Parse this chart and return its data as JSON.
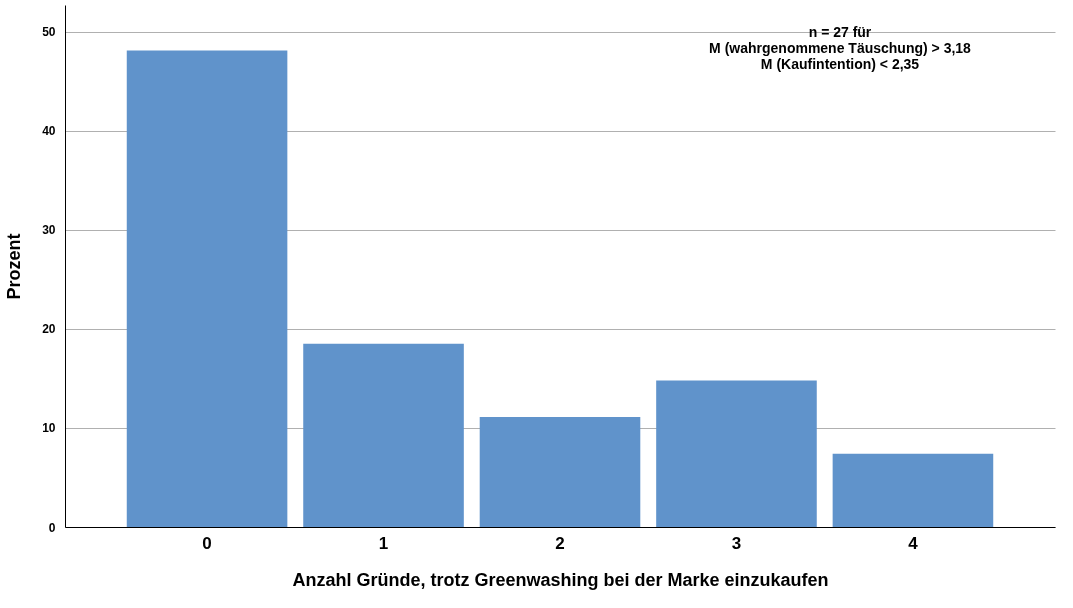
{
  "chart_data": {
    "type": "bar",
    "xlabel": "Anzahl Gründe, trotz Greenwashing bei der Marke einzukaufen",
    "ylabel": "Prozent",
    "categories": [
      "0",
      "1",
      "2",
      "3",
      "4"
    ],
    "values": [
      48.1,
      18.5,
      11.1,
      14.8,
      7.4
    ],
    "color": "#6093cb",
    "ylim": [
      0,
      52.7
    ],
    "yticks": [
      0,
      10,
      20,
      30,
      40,
      50
    ],
    "grid": "y",
    "annotations": [
      "n = 27 für",
      "M (wahrgenommene Täuschung) > 3,18",
      "M (Kaufintention) < 2,35"
    ]
  }
}
